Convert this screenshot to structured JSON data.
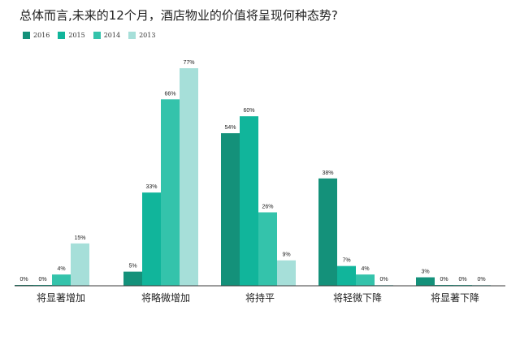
{
  "chart_data": {
    "type": "bar",
    "title": "总体而言,未来的12个月，酒店物业的价值将呈现何种态势?",
    "categories": [
      "将显著增加",
      "将略微增加",
      "将持平",
      "将轻微下降",
      "将显著下降"
    ],
    "series": [
      {
        "name": "2016",
        "color": "#14917a",
        "values": [
          0,
          5,
          54,
          38,
          3
        ]
      },
      {
        "name": "2015",
        "color": "#11b59b",
        "values": [
          0,
          33,
          60,
          7,
          0
        ]
      },
      {
        "name": "2014",
        "color": "#34c3ab",
        "values": [
          4,
          66,
          26,
          4,
          0
        ]
      },
      {
        "name": "2013",
        "color": "#a6dfd9",
        "values": [
          15,
          77,
          9,
          0,
          0
        ]
      }
    ],
    "value_suffix": "%",
    "ylim": [
      0,
      80
    ],
    "grid": false,
    "legend_position": "top-left"
  }
}
